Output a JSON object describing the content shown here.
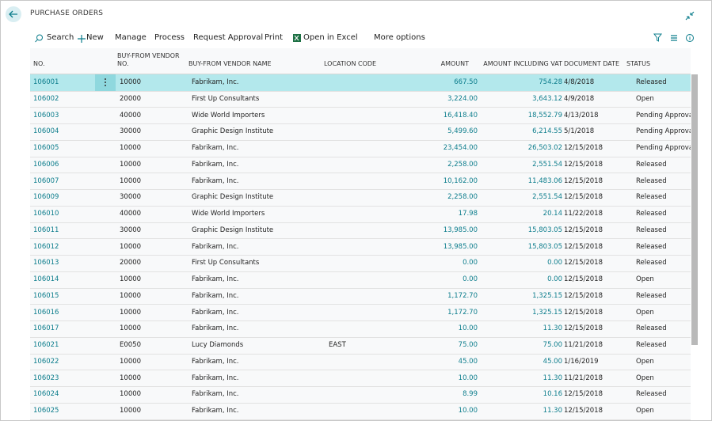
{
  "header": {
    "title": "PURCHASE ORDERS"
  },
  "toolbar": {
    "actions": [
      "Search",
      "New",
      "Manage",
      "Process",
      "Request Approval",
      "Print",
      "Open in Excel",
      "More options"
    ]
  },
  "table": {
    "columns": [
      "NO.",
      "BUY-FROM VENDOR NO.",
      "BUY-FROM VENDOR NAME",
      "LOCATION CODE",
      "AMOUNT",
      "AMOUNT INCLUDING VAT",
      "DOCUMENT DATE",
      "STATUS"
    ],
    "rows": [
      [
        "106001",
        "10000",
        "Fabrikam, Inc.",
        null,
        "667.50",
        "754.28",
        "4/8/2018",
        "Released"
      ],
      [
        "106002",
        "20000",
        "First Up Consultants",
        null,
        "3,224.00",
        "3,643.12",
        "4/9/2018",
        "Open"
      ],
      [
        "106003",
        "40000",
        "Wide World Importers",
        null,
        "16,418.40",
        "18,552.79",
        "4/13/2018",
        "Pending Approval"
      ],
      [
        "106004",
        "30000",
        "Graphic Design Institute",
        null,
        "5,499.60",
        "6,214.55",
        "5/1/2018",
        "Pending Approval"
      ],
      [
        "106005",
        "10000",
        "Fabrikam, Inc.",
        null,
        "23,454.00",
        "26,503.02",
        "12/15/2018",
        "Pending Approval"
      ],
      [
        "106006",
        "10000",
        "Fabrikam, Inc.",
        null,
        "2,258.00",
        "2,551.54",
        "12/15/2018",
        "Released"
      ],
      [
        "106007",
        "10000",
        "Fabrikam, Inc.",
        null,
        "10,162.00",
        "11,483.06",
        "12/15/2018",
        "Released"
      ],
      [
        "106009",
        "30000",
        "Graphic Design Institute",
        null,
        "2,258.00",
        "2,551.54",
        "12/15/2018",
        "Released"
      ],
      [
        "106010",
        "40000",
        "Wide World Importers",
        null,
        "17.98",
        "20.14",
        "11/22/2018",
        "Released"
      ],
      [
        "106011",
        "30000",
        "Graphic Design Institute",
        null,
        "13,985.00",
        "15,803.05",
        "12/15/2018",
        "Released"
      ],
      [
        "106012",
        "10000",
        "Fabrikam, Inc.",
        null,
        "13,985.00",
        "15,803.05",
        "12/15/2018",
        "Released"
      ],
      [
        "106013",
        "20000",
        "First Up Consultants",
        null,
        "0.00",
        "0.00",
        "12/15/2018",
        "Released"
      ],
      [
        "106014",
        "10000",
        "Fabrikam, Inc.",
        null,
        "0.00",
        "0.00",
        "12/15/2018",
        "Open"
      ],
      [
        "106015",
        "10000",
        "Fabrikam, Inc.",
        null,
        "1,172.70",
        "1,325.15",
        "12/15/2018",
        "Released"
      ],
      [
        "106016",
        "10000",
        "Fabrikam, Inc.",
        null,
        "1,172.70",
        "1,325.15",
        "12/15/2018",
        "Open"
      ],
      [
        "106017",
        "10000",
        "Fabrikam, Inc.",
        null,
        "10.00",
        "11.30",
        "12/15/2018",
        "Released"
      ],
      [
        "106021",
        "E0050",
        "Lucy Diamonds",
        "EAST",
        "75.00",
        "75.00",
        "11/21/2018",
        "Released"
      ],
      [
        "106022",
        "10000",
        "Fabrikam, Inc.",
        null,
        "45.00",
        "45.00",
        "1/16/2019",
        "Open"
      ],
      [
        "106023",
        "10000",
        "Fabrikam, Inc.",
        null,
        "10.00",
        "11.30",
        "11/21/2018",
        "Open"
      ],
      [
        "106024",
        "10000",
        "Fabrikam, Inc.",
        null,
        "8.99",
        "10.16",
        "12/15/2018",
        "Released"
      ],
      [
        "106025",
        "10000",
        "Fabrikam, Inc.",
        null,
        "10.00",
        "11.30",
        "12/15/2018",
        "Open"
      ]
    ]
  }
}
